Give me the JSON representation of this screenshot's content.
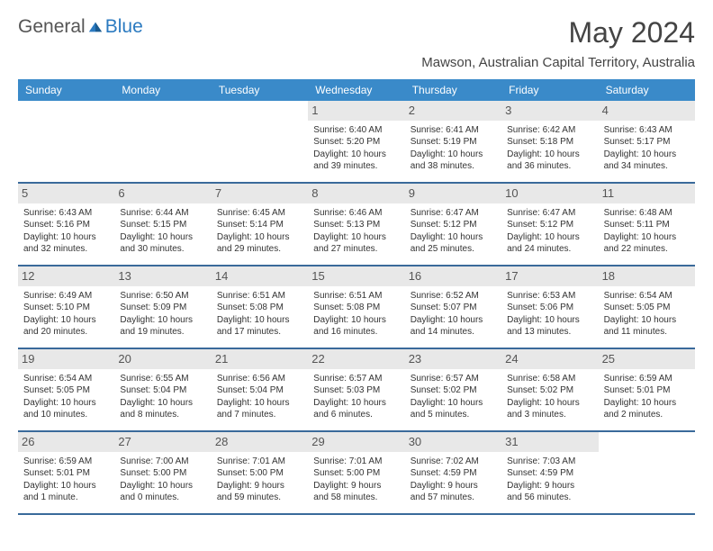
{
  "logo": {
    "text1": "General",
    "text2": "Blue"
  },
  "title": "May 2024",
  "location": "Mawson, Australian Capital Territory, Australia",
  "colors": {
    "header_bg": "#3a8ac9",
    "header_text": "#ffffff",
    "week_border": "#3a6a9a",
    "daynum_bg": "#e8e8e8",
    "text": "#333333",
    "logo_blue": "#2b7ac0"
  },
  "day_names": [
    "Sunday",
    "Monday",
    "Tuesday",
    "Wednesday",
    "Thursday",
    "Friday",
    "Saturday"
  ],
  "weeks": [
    [
      null,
      null,
      null,
      {
        "d": "1",
        "sr": "Sunrise: 6:40 AM",
        "ss": "Sunset: 5:20 PM",
        "d1": "Daylight: 10 hours",
        "d2": "and 39 minutes."
      },
      {
        "d": "2",
        "sr": "Sunrise: 6:41 AM",
        "ss": "Sunset: 5:19 PM",
        "d1": "Daylight: 10 hours",
        "d2": "and 38 minutes."
      },
      {
        "d": "3",
        "sr": "Sunrise: 6:42 AM",
        "ss": "Sunset: 5:18 PM",
        "d1": "Daylight: 10 hours",
        "d2": "and 36 minutes."
      },
      {
        "d": "4",
        "sr": "Sunrise: 6:43 AM",
        "ss": "Sunset: 5:17 PM",
        "d1": "Daylight: 10 hours",
        "d2": "and 34 minutes."
      }
    ],
    [
      {
        "d": "5",
        "sr": "Sunrise: 6:43 AM",
        "ss": "Sunset: 5:16 PM",
        "d1": "Daylight: 10 hours",
        "d2": "and 32 minutes."
      },
      {
        "d": "6",
        "sr": "Sunrise: 6:44 AM",
        "ss": "Sunset: 5:15 PM",
        "d1": "Daylight: 10 hours",
        "d2": "and 30 minutes."
      },
      {
        "d": "7",
        "sr": "Sunrise: 6:45 AM",
        "ss": "Sunset: 5:14 PM",
        "d1": "Daylight: 10 hours",
        "d2": "and 29 minutes."
      },
      {
        "d": "8",
        "sr": "Sunrise: 6:46 AM",
        "ss": "Sunset: 5:13 PM",
        "d1": "Daylight: 10 hours",
        "d2": "and 27 minutes."
      },
      {
        "d": "9",
        "sr": "Sunrise: 6:47 AM",
        "ss": "Sunset: 5:12 PM",
        "d1": "Daylight: 10 hours",
        "d2": "and 25 minutes."
      },
      {
        "d": "10",
        "sr": "Sunrise: 6:47 AM",
        "ss": "Sunset: 5:12 PM",
        "d1": "Daylight: 10 hours",
        "d2": "and 24 minutes."
      },
      {
        "d": "11",
        "sr": "Sunrise: 6:48 AM",
        "ss": "Sunset: 5:11 PM",
        "d1": "Daylight: 10 hours",
        "d2": "and 22 minutes."
      }
    ],
    [
      {
        "d": "12",
        "sr": "Sunrise: 6:49 AM",
        "ss": "Sunset: 5:10 PM",
        "d1": "Daylight: 10 hours",
        "d2": "and 20 minutes."
      },
      {
        "d": "13",
        "sr": "Sunrise: 6:50 AM",
        "ss": "Sunset: 5:09 PM",
        "d1": "Daylight: 10 hours",
        "d2": "and 19 minutes."
      },
      {
        "d": "14",
        "sr": "Sunrise: 6:51 AM",
        "ss": "Sunset: 5:08 PM",
        "d1": "Daylight: 10 hours",
        "d2": "and 17 minutes."
      },
      {
        "d": "15",
        "sr": "Sunrise: 6:51 AM",
        "ss": "Sunset: 5:08 PM",
        "d1": "Daylight: 10 hours",
        "d2": "and 16 minutes."
      },
      {
        "d": "16",
        "sr": "Sunrise: 6:52 AM",
        "ss": "Sunset: 5:07 PM",
        "d1": "Daylight: 10 hours",
        "d2": "and 14 minutes."
      },
      {
        "d": "17",
        "sr": "Sunrise: 6:53 AM",
        "ss": "Sunset: 5:06 PM",
        "d1": "Daylight: 10 hours",
        "d2": "and 13 minutes."
      },
      {
        "d": "18",
        "sr": "Sunrise: 6:54 AM",
        "ss": "Sunset: 5:05 PM",
        "d1": "Daylight: 10 hours",
        "d2": "and 11 minutes."
      }
    ],
    [
      {
        "d": "19",
        "sr": "Sunrise: 6:54 AM",
        "ss": "Sunset: 5:05 PM",
        "d1": "Daylight: 10 hours",
        "d2": "and 10 minutes."
      },
      {
        "d": "20",
        "sr": "Sunrise: 6:55 AM",
        "ss": "Sunset: 5:04 PM",
        "d1": "Daylight: 10 hours",
        "d2": "and 8 minutes."
      },
      {
        "d": "21",
        "sr": "Sunrise: 6:56 AM",
        "ss": "Sunset: 5:04 PM",
        "d1": "Daylight: 10 hours",
        "d2": "and 7 minutes."
      },
      {
        "d": "22",
        "sr": "Sunrise: 6:57 AM",
        "ss": "Sunset: 5:03 PM",
        "d1": "Daylight: 10 hours",
        "d2": "and 6 minutes."
      },
      {
        "d": "23",
        "sr": "Sunrise: 6:57 AM",
        "ss": "Sunset: 5:02 PM",
        "d1": "Daylight: 10 hours",
        "d2": "and 5 minutes."
      },
      {
        "d": "24",
        "sr": "Sunrise: 6:58 AM",
        "ss": "Sunset: 5:02 PM",
        "d1": "Daylight: 10 hours",
        "d2": "and 3 minutes."
      },
      {
        "d": "25",
        "sr": "Sunrise: 6:59 AM",
        "ss": "Sunset: 5:01 PM",
        "d1": "Daylight: 10 hours",
        "d2": "and 2 minutes."
      }
    ],
    [
      {
        "d": "26",
        "sr": "Sunrise: 6:59 AM",
        "ss": "Sunset: 5:01 PM",
        "d1": "Daylight: 10 hours",
        "d2": "and 1 minute."
      },
      {
        "d": "27",
        "sr": "Sunrise: 7:00 AM",
        "ss": "Sunset: 5:00 PM",
        "d1": "Daylight: 10 hours",
        "d2": "and 0 minutes."
      },
      {
        "d": "28",
        "sr": "Sunrise: 7:01 AM",
        "ss": "Sunset: 5:00 PM",
        "d1": "Daylight: 9 hours",
        "d2": "and 59 minutes."
      },
      {
        "d": "29",
        "sr": "Sunrise: 7:01 AM",
        "ss": "Sunset: 5:00 PM",
        "d1": "Daylight: 9 hours",
        "d2": "and 58 minutes."
      },
      {
        "d": "30",
        "sr": "Sunrise: 7:02 AM",
        "ss": "Sunset: 4:59 PM",
        "d1": "Daylight: 9 hours",
        "d2": "and 57 minutes."
      },
      {
        "d": "31",
        "sr": "Sunrise: 7:03 AM",
        "ss": "Sunset: 4:59 PM",
        "d1": "Daylight: 9 hours",
        "d2": "and 56 minutes."
      },
      null
    ]
  ]
}
